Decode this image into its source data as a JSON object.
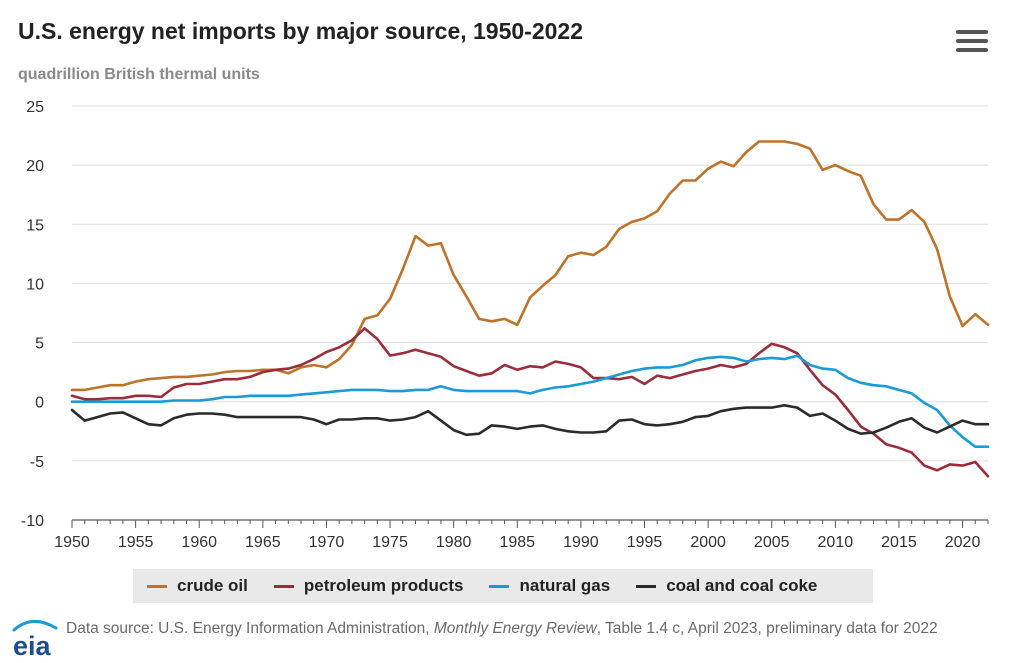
{
  "title": "U.S. energy net imports by major source, 1950-2022",
  "subtitle": "quadrillion British thermal units",
  "menu_icon": "hamburger-menu-icon",
  "source": {
    "prefix": "Data source: U.S. Energy Information Administration, ",
    "publication": "Monthly Energy Review",
    "suffix": ", Table 1.4 c, April 2023, preliminary data for 2022"
  },
  "logo_text": "eia",
  "chart_data": {
    "type": "line",
    "title": "U.S. energy net imports by major source, 1950-2022",
    "subtitle": "quadrillion British thermal units",
    "xlabel": "",
    "ylabel": "",
    "xlim": [
      1950,
      2022
    ],
    "ylim": [
      -10,
      25
    ],
    "x_ticks": [
      1950,
      1955,
      1960,
      1965,
      1970,
      1975,
      1980,
      1985,
      1990,
      1995,
      2000,
      2005,
      2010,
      2015,
      2020
    ],
    "y_ticks": [
      -10,
      -5,
      0,
      5,
      10,
      15,
      20,
      25
    ],
    "grid": "horizontal",
    "legend_position": "bottom",
    "x": [
      1950,
      1951,
      1952,
      1953,
      1954,
      1955,
      1956,
      1957,
      1958,
      1959,
      1960,
      1961,
      1962,
      1963,
      1964,
      1965,
      1966,
      1967,
      1968,
      1969,
      1970,
      1971,
      1972,
      1973,
      1974,
      1975,
      1976,
      1977,
      1978,
      1979,
      1980,
      1981,
      1982,
      1983,
      1984,
      1985,
      1986,
      1987,
      1988,
      1989,
      1990,
      1991,
      1992,
      1993,
      1994,
      1995,
      1996,
      1997,
      1998,
      1999,
      2000,
      2001,
      2002,
      2003,
      2004,
      2005,
      2006,
      2007,
      2008,
      2009,
      2010,
      2011,
      2012,
      2013,
      2014,
      2015,
      2016,
      2017,
      2018,
      2019,
      2020,
      2021,
      2022
    ],
    "series": [
      {
        "name": "crude oil",
        "color": "#bd732a",
        "values": [
          1.0,
          1.0,
          1.2,
          1.4,
          1.4,
          1.7,
          1.9,
          2.0,
          2.1,
          2.1,
          2.2,
          2.3,
          2.5,
          2.6,
          2.6,
          2.7,
          2.7,
          2.4,
          2.9,
          3.1,
          2.9,
          3.6,
          4.8,
          7.0,
          7.3,
          8.7,
          11.2,
          14.0,
          13.2,
          13.4,
          10.7,
          8.9,
          7.0,
          6.8,
          7.0,
          6.5,
          8.8,
          9.8,
          10.7,
          12.3,
          12.6,
          12.4,
          13.1,
          14.6,
          15.2,
          15.5,
          16.1,
          17.6,
          18.7,
          18.7,
          19.7,
          20.3,
          19.9,
          21.1,
          22.0,
          22.0,
          22.0,
          21.8,
          21.4,
          19.6,
          20.0,
          19.5,
          19.1,
          16.7,
          15.4,
          15.4,
          16.2,
          15.2,
          12.9,
          8.9,
          6.4,
          7.4,
          6.5
        ]
      },
      {
        "name": "petroleum products",
        "color": "#9b2d3b",
        "values": [
          0.5,
          0.2,
          0.2,
          0.3,
          0.3,
          0.5,
          0.5,
          0.4,
          1.2,
          1.5,
          1.5,
          1.7,
          1.9,
          1.9,
          2.1,
          2.5,
          2.7,
          2.8,
          3.1,
          3.6,
          4.2,
          4.6,
          5.2,
          6.2,
          5.3,
          3.9,
          4.1,
          4.4,
          4.1,
          3.8,
          3.0,
          2.6,
          2.2,
          2.4,
          3.1,
          2.7,
          3.0,
          2.9,
          3.4,
          3.2,
          2.9,
          2.0,
          2.0,
          1.9,
          2.1,
          1.5,
          2.2,
          2.0,
          2.3,
          2.6,
          2.8,
          3.1,
          2.9,
          3.2,
          4.1,
          4.9,
          4.6,
          4.1,
          2.7,
          1.4,
          0.6,
          -0.7,
          -2.1,
          -2.7,
          -3.6,
          -3.9,
          -4.3,
          -5.4,
          -5.8,
          -5.3,
          -5.4,
          -5.1,
          -6.3
        ]
      },
      {
        "name": "natural gas",
        "color": "#1a9ad6",
        "values": [
          0.0,
          0.0,
          0.0,
          0.0,
          0.0,
          0.0,
          0.0,
          0.0,
          0.1,
          0.1,
          0.1,
          0.2,
          0.4,
          0.4,
          0.5,
          0.5,
          0.5,
          0.5,
          0.6,
          0.7,
          0.8,
          0.9,
          1.0,
          1.0,
          1.0,
          0.9,
          0.9,
          1.0,
          1.0,
          1.3,
          1.0,
          0.9,
          0.9,
          0.9,
          0.9,
          0.9,
          0.7,
          1.0,
          1.2,
          1.3,
          1.5,
          1.7,
          2.0,
          2.3,
          2.6,
          2.8,
          2.9,
          2.9,
          3.1,
          3.5,
          3.7,
          3.8,
          3.7,
          3.4,
          3.6,
          3.7,
          3.6,
          3.9,
          3.1,
          2.8,
          2.7,
          2.0,
          1.6,
          1.4,
          1.3,
          1.0,
          0.7,
          -0.1,
          -0.7,
          -2.0,
          -3.0,
          -3.8,
          -3.8
        ]
      },
      {
        "name": "coal and coal coke",
        "color": "#2b2b2b",
        "values": [
          -0.7,
          -1.6,
          -1.3,
          -1.0,
          -0.9,
          -1.4,
          -1.9,
          -2.0,
          -1.4,
          -1.1,
          -1.0,
          -1.0,
          -1.1,
          -1.3,
          -1.3,
          -1.3,
          -1.3,
          -1.3,
          -1.3,
          -1.5,
          -1.9,
          -1.5,
          -1.5,
          -1.4,
          -1.4,
          -1.6,
          -1.5,
          -1.3,
          -0.8,
          -1.6,
          -2.4,
          -2.8,
          -2.7,
          -2.0,
          -2.1,
          -2.3,
          -2.1,
          -2.0,
          -2.3,
          -2.5,
          -2.6,
          -2.6,
          -2.5,
          -1.6,
          -1.5,
          -1.9,
          -2.0,
          -1.9,
          -1.7,
          -1.3,
          -1.2,
          -0.8,
          -0.6,
          -0.5,
          -0.5,
          -0.5,
          -0.3,
          -0.5,
          -1.2,
          -1.0,
          -1.6,
          -2.3,
          -2.7,
          -2.6,
          -2.2,
          -1.7,
          -1.4,
          -2.2,
          -2.6,
          -2.1,
          -1.6,
          -1.9,
          -1.9
        ]
      }
    ]
  }
}
